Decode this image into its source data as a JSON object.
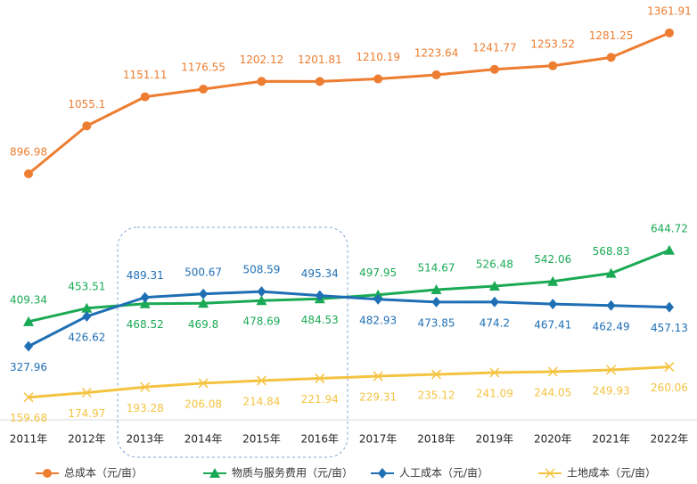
{
  "chart_data": {
    "type": "line",
    "categories": [
      "2011年",
      "2012年",
      "2013年",
      "2014年",
      "2015年",
      "2016年",
      "2017年",
      "2018年",
      "2019年",
      "2020年",
      "2021年",
      "2022年"
    ],
    "series": [
      {
        "name": "总成本（元/亩）",
        "color": "#ed7d31",
        "marker": "circle",
        "values": [
          896.98,
          1055.1,
          1151.11,
          1176.55,
          1202.12,
          1201.81,
          1210.19,
          1223.64,
          1241.77,
          1253.52,
          1281.25,
          1361.91
        ]
      },
      {
        "name": "物质与服务费用（元/亩）",
        "color": "#1aaa55",
        "marker": "triangle",
        "values": [
          409.34,
          453.51,
          468.52,
          469.8,
          478.69,
          484.53,
          497.95,
          514.67,
          526.48,
          542.06,
          568.83,
          644.72
        ]
      },
      {
        "name": "人工成本（元/亩）",
        "color": "#1f6fb5",
        "marker": "diamond",
        "values": [
          327.96,
          426.62,
          489.31,
          500.67,
          508.59,
          495.34,
          482.93,
          473.85,
          474.2,
          467.41,
          462.49,
          457.13
        ]
      },
      {
        "name": "土地成本（元/亩）",
        "color": "#f5c342",
        "marker": "x",
        "values": [
          159.68,
          174.97,
          193.28,
          206.08,
          214.84,
          221.94,
          229.31,
          235.12,
          241.09,
          244.05,
          249.93,
          260.06
        ]
      }
    ],
    "legend": "bottom"
  }
}
